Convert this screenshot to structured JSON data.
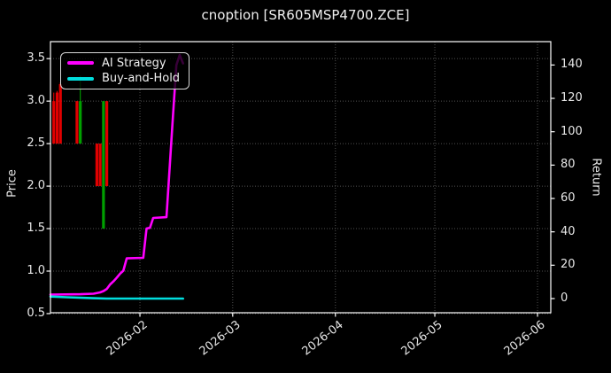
{
  "title": "cnoption [SR605MSP4700.ZCE]",
  "legend": {
    "items": [
      {
        "label": "AI Strategy",
        "color": "#ff00ff"
      },
      {
        "label": "Buy-and-Hold",
        "color": "#00dede"
      }
    ]
  },
  "axis_labels": {
    "left": "Price",
    "right": "Return"
  },
  "chart_data": {
    "type": "mixed-candlestick-line",
    "title": "cnoption [SR605MSP4700.ZCE]",
    "xlabel": "",
    "ylabel_left": "Price",
    "ylabel_right": "Return",
    "grid": true,
    "legend_position": "upper-left",
    "x_tick_labels": [
      "2026-02",
      "2026-03",
      "2026-04",
      "2026-05",
      "2026-06"
    ],
    "x_tick_dates": [
      "2026-02-01",
      "2026-03-01",
      "2026-04-01",
      "2026-05-01",
      "2026-06-01"
    ],
    "y_left_tick_labels": [
      "0.5",
      "1.0",
      "1.5",
      "2.0",
      "2.5",
      "3.0",
      "3.5"
    ],
    "y_left_ticks": [
      0.5,
      1.0,
      1.5,
      2.0,
      2.5,
      3.0,
      3.5
    ],
    "y_right_tick_labels": [
      "0",
      "20",
      "40",
      "60",
      "80",
      "100",
      "120",
      "140"
    ],
    "y_right_ticks": [
      0,
      20,
      40,
      60,
      80,
      100,
      120,
      140
    ],
    "x_range_dates": [
      "2026-01-05",
      "2026-06-05"
    ],
    "price_axis_range_bottom_top": [
      0.51,
      3.7
    ],
    "return_axis_range_bottom_top": [
      -8.5,
      154.0
    ],
    "candles": [
      {
        "date": "2026-01-06",
        "open": 3.0,
        "high": 3.1,
        "low": 2.5,
        "close": 2.5
      },
      {
        "date": "2026-01-07",
        "open": 3.1,
        "high": 3.12,
        "low": 2.5,
        "close": 2.5
      },
      {
        "date": "2026-01-08",
        "open": 3.2,
        "high": 3.22,
        "low": 2.5,
        "close": 2.5
      },
      {
        "date": "2026-01-13",
        "open": 3.0,
        "high": 3.0,
        "low": 2.5,
        "close": 2.5
      },
      {
        "date": "2026-01-14",
        "open": 2.5,
        "high": 3.3,
        "low": 2.5,
        "close": 3.0
      },
      {
        "date": "2026-01-19",
        "open": 2.5,
        "high": 2.5,
        "low": 2.0,
        "close": 2.0
      },
      {
        "date": "2026-01-20",
        "open": 2.5,
        "high": 2.5,
        "low": 2.0,
        "close": 2.0
      },
      {
        "date": "2026-01-21",
        "open": 1.5,
        "high": 3.0,
        "low": 1.5,
        "close": 3.0
      },
      {
        "date": "2026-01-22",
        "open": 3.0,
        "high": 3.0,
        "low": 2.0,
        "close": 2.0
      }
    ],
    "series": [
      {
        "name": "AI Strategy",
        "axis": "return",
        "color": "#ff00ff",
        "width": 2.6,
        "points": [
          [
            "2026-01-05",
            2.4
          ],
          [
            "2026-01-14",
            2.6
          ],
          [
            "2026-01-18",
            2.9
          ],
          [
            "2026-01-20",
            3.7
          ],
          [
            "2026-01-21",
            4.5
          ],
          [
            "2026-01-22",
            5.8
          ],
          [
            "2026-01-23",
            8.5
          ],
          [
            "2026-01-24",
            10.3
          ],
          [
            "2026-01-25",
            12.5
          ],
          [
            "2026-01-26",
            14.9
          ],
          [
            "2026-01-27",
            16.7
          ],
          [
            "2026-01-28",
            24.1
          ],
          [
            "2026-02-02",
            24.4
          ],
          [
            "2026-02-03",
            42.0
          ],
          [
            "2026-02-04",
            42.4
          ],
          [
            "2026-02-05",
            48.3
          ],
          [
            "2026-02-09",
            48.8
          ],
          [
            "2026-02-11",
            110.0
          ],
          [
            "2026-02-12",
            140.0
          ],
          [
            "2026-02-13",
            146.0
          ],
          [
            "2026-02-14",
            141.0
          ]
        ]
      },
      {
        "name": "Buy-and-Hold",
        "axis": "return",
        "color": "#00dede",
        "width": 2.6,
        "points": [
          [
            "2026-01-05",
            1.2
          ],
          [
            "2026-01-10",
            0.8
          ],
          [
            "2026-01-18",
            0.2
          ],
          [
            "2026-01-22",
            0.0
          ],
          [
            "2026-02-14",
            0.0
          ]
        ]
      }
    ],
    "colors": {
      "background": "#000000",
      "text": "#e8e8e8",
      "axis": "#ffffff",
      "grid": "#515151",
      "candle_up": "#00a000",
      "candle_down": "#e00000",
      "ai_strategy": "#ff00ff",
      "buy_and_hold": "#00dede"
    }
  }
}
